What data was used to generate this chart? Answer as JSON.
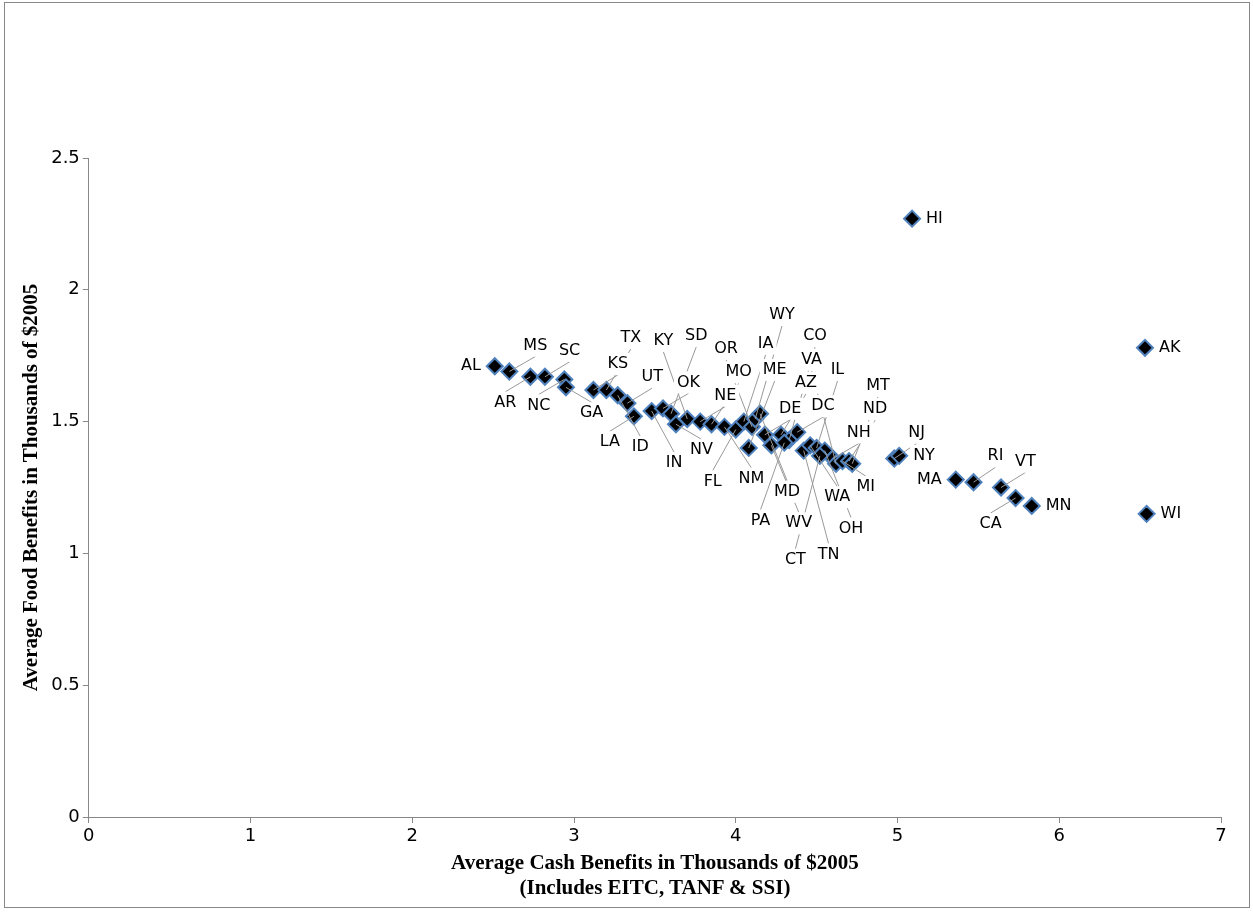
{
  "chart_data": {
    "type": "scatter",
    "xlabel": "Average Cash Benefits in Thousands of $2005\n(Includes EITC, TANF & SSI)",
    "ylabel": "Average Food Benefits in Thousands of $2005",
    "x": [
      2.51,
      2.6,
      2.73,
      2.82,
      2.94,
      2.95,
      3.12,
      3.2,
      3.27,
      3.33,
      3.37,
      3.48,
      3.55,
      3.6,
      3.63,
      3.7,
      3.78,
      3.85,
      3.93,
      4.0,
      4.05,
      4.1,
      4.12,
      4.08,
      4.15,
      4.18,
      4.22,
      4.28,
      4.33,
      4.38,
      4.42,
      4.46,
      4.5,
      4.55,
      4.6,
      4.62,
      4.66,
      4.7,
      4.72,
      4.98,
      5.01,
      5.36,
      5.47,
      5.64,
      5.73,
      5.83,
      5.09,
      6.53,
      6.54,
      4.52,
      4.3
    ],
    "values": [
      1.71,
      1.69,
      1.67,
      1.67,
      1.66,
      1.63,
      1.62,
      1.62,
      1.6,
      1.57,
      1.52,
      1.54,
      1.55,
      1.53,
      1.49,
      1.51,
      1.5,
      1.49,
      1.48,
      1.47,
      1.5,
      1.48,
      1.51,
      1.4,
      1.53,
      1.45,
      1.41,
      1.45,
      1.43,
      1.46,
      1.39,
      1.41,
      1.4,
      1.39,
      1.36,
      1.34,
      1.35,
      1.35,
      1.34,
      1.36,
      1.37,
      1.28,
      1.27,
      1.25,
      1.21,
      1.18,
      2.27,
      1.78,
      1.15,
      1.37,
      1.42
    ],
    "value_labels": [
      "AL",
      "MS",
      "AR",
      "SC",
      "NC",
      "GA",
      "KS",
      "TX",
      "ID",
      "UT",
      "LA",
      "IN",
      "OK",
      "SD",
      "NV",
      "KY",
      "NE",
      "MO",
      "NM",
      "FL",
      "IA",
      "OR",
      "WY",
      "ME",
      "MD",
      "DE",
      "WV",
      "AZ",
      "CO",
      "DC",
      "TN",
      "WA",
      "IL",
      "OH",
      "NH",
      "VA",
      "MI",
      "ND",
      "MT",
      "NJ",
      "NY",
      "MA",
      "RI",
      "VT",
      "CA",
      "MN",
      "HI",
      "AK",
      "WI",
      "CT",
      "PA"
    ],
    "color": "#000000",
    "marker": "diamond",
    "grid": false,
    "legend": false,
    "xlim": [
      0,
      7
    ],
    "xticks": [
      0,
      1,
      2,
      3,
      4,
      5,
      6,
      7
    ],
    "ylim": [
      0,
      2.5
    ],
    "yticks": [
      0,
      0.5,
      1,
      1.5,
      2,
      2.5
    ]
  }
}
